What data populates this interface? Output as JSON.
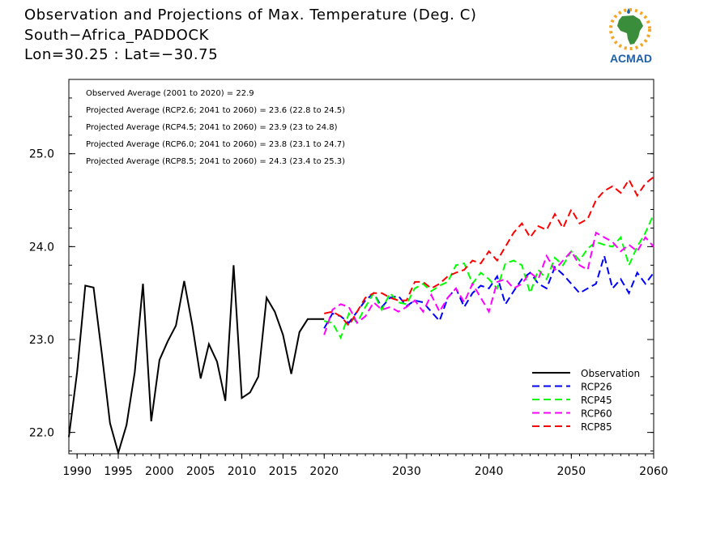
{
  "header": {
    "title_line1": "Observation and Projections of Max. Temperature (Deg. C)",
    "title_line2": "South−Africa_PADDOCK",
    "title_line3": "Lon=30.25 : Lat=−30.75"
  },
  "logo": {
    "text": "ACMAD"
  },
  "chart_data": {
    "type": "line",
    "xlim": [
      1989,
      2060
    ],
    "ylim": [
      21.77,
      25.8
    ],
    "x_ticks": [
      1990,
      1995,
      2000,
      2005,
      2010,
      2015,
      2020,
      2030,
      2040,
      2050,
      2060
    ],
    "y_ticks": [
      22.0,
      23.0,
      24.0,
      25.0
    ],
    "y_tick_labels": [
      "22.0",
      "23.0",
      "24.0",
      "25.0"
    ],
    "annotations": [
      "Observed Average (2001 to 2020) = 22.9",
      "Projected Average (RCP2.6; 2041 to 2060) = 23.6 (22.8 to 24.5)",
      "Projected Average (RCP4.5; 2041 to 2060) = 23.9 (23 to 24.8)",
      "Projected Average (RCP6.0; 2041 to 2060) = 23.8 (23.1 to 24.7)",
      "Projected Average (RCP8.5; 2041 to 2060) = 24.3 (23.4 to 25.3)"
    ],
    "legend_position": "bottom-right",
    "series": [
      {
        "name": "Observation",
        "color": "#000000",
        "style": "solid",
        "x": [
          1989,
          1990,
          1991,
          1992,
          1993,
          1994,
          1995,
          1996,
          1997,
          1998,
          1999,
          2000,
          2001,
          2002,
          2003,
          2004,
          2005,
          2006,
          2007,
          2008,
          2009,
          2010,
          2011,
          2012,
          2013,
          2014,
          2015,
          2016,
          2017,
          2018,
          2019,
          2020
        ],
        "values": [
          21.95,
          22.65,
          23.58,
          23.56,
          22.85,
          22.1,
          21.78,
          22.08,
          22.65,
          23.6,
          22.12,
          22.78,
          22.98,
          23.15,
          23.63,
          23.15,
          22.58,
          22.95,
          22.76,
          22.34,
          23.8,
          22.37,
          22.43,
          22.6,
          23.45,
          23.3,
          23.05,
          22.63,
          23.08,
          23.22,
          23.22,
          23.22
        ]
      },
      {
        "name": "RCP26",
        "color": "#0000ff",
        "style": "dashed",
        "x": [
          2020,
          2021,
          2022,
          2023,
          2024,
          2025,
          2026,
          2027,
          2028,
          2029,
          2030,
          2031,
          2032,
          2033,
          2034,
          2035,
          2036,
          2037,
          2038,
          2039,
          2040,
          2041,
          2042,
          2043,
          2044,
          2045,
          2046,
          2047,
          2048,
          2049,
          2050,
          2051,
          2052,
          2053,
          2054,
          2055,
          2056,
          2057,
          2058,
          2059,
          2060
        ],
        "values": [
          23.12,
          23.28,
          23.25,
          23.18,
          23.3,
          23.42,
          23.5,
          23.35,
          23.45,
          23.47,
          23.36,
          23.42,
          23.4,
          23.3,
          23.2,
          23.45,
          23.55,
          23.35,
          23.5,
          23.58,
          23.55,
          23.68,
          23.38,
          23.52,
          23.65,
          23.72,
          23.6,
          23.55,
          23.78,
          23.7,
          23.6,
          23.5,
          23.55,
          23.6,
          23.9,
          23.55,
          23.65,
          23.5,
          23.72,
          23.6,
          23.72
        ]
      },
      {
        "name": "RCP45",
        "color": "#00ff00",
        "style": "dashed",
        "x": [
          2020,
          2021,
          2022,
          2023,
          2024,
          2025,
          2026,
          2027,
          2028,
          2029,
          2030,
          2031,
          2032,
          2033,
          2034,
          2035,
          2036,
          2037,
          2038,
          2039,
          2040,
          2041,
          2042,
          2043,
          2044,
          2045,
          2046,
          2047,
          2048,
          2049,
          2050,
          2051,
          2052,
          2053,
          2054,
          2055,
          2056,
          2057,
          2058,
          2059,
          2060
        ],
        "values": [
          23.2,
          23.18,
          23.02,
          23.28,
          23.18,
          23.35,
          23.5,
          23.32,
          23.5,
          23.4,
          23.38,
          23.55,
          23.6,
          23.52,
          23.58,
          23.62,
          23.8,
          23.82,
          23.6,
          23.72,
          23.65,
          23.55,
          23.82,
          23.85,
          23.8,
          23.5,
          23.75,
          23.65,
          23.88,
          23.8,
          23.95,
          23.85,
          23.98,
          24.05,
          24.02,
          24.0,
          24.1,
          23.8,
          24.0,
          24.15,
          24.35
        ]
      },
      {
        "name": "RCP60",
        "color": "#ff00ff",
        "style": "dashed",
        "x": [
          2020,
          2021,
          2022,
          2023,
          2024,
          2025,
          2026,
          2027,
          2028,
          2029,
          2030,
          2031,
          2032,
          2033,
          2034,
          2035,
          2036,
          2037,
          2038,
          2039,
          2040,
          2041,
          2042,
          2043,
          2044,
          2045,
          2046,
          2047,
          2048,
          2049,
          2050,
          2051,
          2052,
          2053,
          2054,
          2055,
          2056,
          2057,
          2058,
          2059,
          2060
        ],
        "values": [
          23.05,
          23.32,
          23.38,
          23.35,
          23.18,
          23.25,
          23.4,
          23.32,
          23.35,
          23.3,
          23.35,
          23.42,
          23.3,
          23.48,
          23.3,
          23.45,
          23.55,
          23.4,
          23.6,
          23.45,
          23.3,
          23.62,
          23.65,
          23.55,
          23.6,
          23.72,
          23.65,
          23.9,
          23.75,
          23.85,
          23.95,
          23.8,
          23.75,
          24.15,
          24.1,
          24.05,
          23.95,
          24.02,
          23.95,
          24.1,
          24.0
        ]
      },
      {
        "name": "RCP85",
        "color": "#ff0000",
        "style": "dashed",
        "x": [
          2020,
          2021,
          2022,
          2023,
          2024,
          2025,
          2026,
          2027,
          2028,
          2029,
          2030,
          2031,
          2032,
          2033,
          2034,
          2035,
          2036,
          2037,
          2038,
          2039,
          2040,
          2041,
          2042,
          2043,
          2044,
          2045,
          2046,
          2047,
          2048,
          2049,
          2050,
          2051,
          2052,
          2053,
          2054,
          2055,
          2056,
          2057,
          2058,
          2059,
          2060
        ],
        "values": [
          23.28,
          23.3,
          23.25,
          23.15,
          23.3,
          23.45,
          23.5,
          23.5,
          23.45,
          23.42,
          23.42,
          23.62,
          23.62,
          23.55,
          23.6,
          23.68,
          23.72,
          23.75,
          23.85,
          23.82,
          23.95,
          23.85,
          24.0,
          24.15,
          24.25,
          24.1,
          24.22,
          24.18,
          24.35,
          24.2,
          24.4,
          24.25,
          24.3,
          24.5,
          24.6,
          24.65,
          24.58,
          24.72,
          24.55,
          24.68,
          24.75
        ]
      }
    ]
  }
}
